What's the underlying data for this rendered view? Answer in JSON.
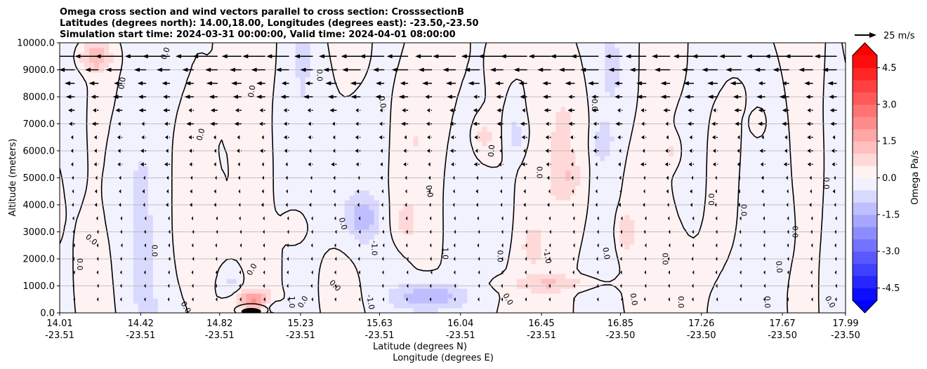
{
  "chart_data": {
    "type": "contour",
    "title_lines": [
      "Omega cross section and wind vectors parallel to cross section: CrosssectionB",
      "Latitudes (degrees north): 14.00,18.00, Longitudes (degrees east): -23.50,-23.50",
      "Simulation start time: 2024-03-31 00:00:00, Valid time: 2024-04-01 08:00:00"
    ],
    "ylabel": "Altitude (meters)",
    "xlabel_primary": "Latitude (degrees N)",
    "xlabel_secondary": "Longitude (degrees E)",
    "y_range": [
      0,
      10000
    ],
    "y_ticks": [
      "0.0",
      "1000.0",
      "2000.0",
      "3000.0",
      "4000.0",
      "5000.0",
      "6000.0",
      "7000.0",
      "8000.0",
      "9000.0",
      "10000.0"
    ],
    "x_range": [
      14.01,
      17.99
    ],
    "x_ticks": [
      {
        "value": 14.01,
        "lat": "14.01",
        "lon": "-23.51"
      },
      {
        "value": 14.42,
        "lat": "14.42",
        "lon": "-23.51"
      },
      {
        "value": 14.82,
        "lat": "14.82",
        "lon": "-23.51"
      },
      {
        "value": 15.23,
        "lat": "15.23",
        "lon": "-23.51"
      },
      {
        "value": 15.63,
        "lat": "15.63",
        "lon": "-23.51"
      },
      {
        "value": 16.04,
        "lat": "16.04",
        "lon": "-23.51"
      },
      {
        "value": 16.45,
        "lat": "16.45",
        "lon": "-23.51"
      },
      {
        "value": 16.85,
        "lat": "16.85",
        "lon": "-23.50"
      },
      {
        "value": 17.26,
        "lat": "17.26",
        "lon": "-23.50"
      },
      {
        "value": 17.67,
        "lat": "17.67",
        "lon": "-23.50"
      },
      {
        "value": 17.99,
        "lat": "17.99",
        "lon": "-23.50"
      }
    ],
    "grid": "horizontal",
    "colorbar": {
      "label": "Omega Pa/s",
      "range": [
        -5.0,
        5.0
      ],
      "ticks": [
        "-4.5",
        "-3.0",
        "-1.5",
        "0.0",
        "1.5",
        "3.0",
        "4.5"
      ],
      "tick_values": [
        -4.5,
        -3.0,
        -1.5,
        0.0,
        1.5,
        3.0,
        4.5
      ],
      "levels": [
        -5.0,
        -4.5,
        -4.0,
        -3.5,
        -3.0,
        -2.5,
        -2.0,
        -1.5,
        -1.0,
        -0.5,
        0.0,
        0.5,
        1.0,
        1.5,
        2.0,
        2.5,
        3.0,
        3.5,
        4.0,
        4.5,
        5.0
      ],
      "extend": "both",
      "colormap": "bwr"
    },
    "contour_line_labels": [
      "0.0",
      "1.0",
      "-1.0",
      "-1.0",
      "1.0"
    ],
    "wind_vector_key": {
      "label": "25 m/s",
      "speed": 25
    },
    "wind_vectors": "mostly westward (pointing left), strongest above 8000 m"
  }
}
